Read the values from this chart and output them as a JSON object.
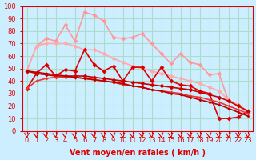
{
  "x": [
    0,
    1,
    2,
    3,
    4,
    5,
    6,
    7,
    8,
    9,
    10,
    11,
    12,
    13,
    14,
    15,
    16,
    17,
    18,
    19,
    20,
    21,
    22,
    23
  ],
  "series": [
    {
      "name": "light_pink_top",
      "color": "#ff9999",
      "linewidth": 1.2,
      "markersize": 3,
      "y": [
        48,
        68,
        74,
        72,
        85,
        72,
        95,
        93,
        88,
        75,
        74,
        75,
        78,
        70,
        62,
        54,
        62,
        55,
        53,
        45,
        46,
        24,
        20,
        15
      ]
    },
    {
      "name": "light_pink_mid",
      "color": "#ffaaaa",
      "linewidth": 1.2,
      "markersize": 3,
      "y": [
        48,
        68,
        70,
        70,
        70,
        68,
        65,
        65,
        62,
        58,
        55,
        52,
        50,
        48,
        46,
        44,
        42,
        40,
        38,
        35,
        32,
        25,
        21,
        16
      ]
    },
    {
      "name": "red_jagged",
      "color": "#dd0000",
      "linewidth": 1.2,
      "markersize": 3,
      "y": [
        34,
        46,
        53,
        44,
        49,
        48,
        65,
        53,
        48,
        52,
        40,
        51,
        51,
        40,
        51,
        40,
        37,
        36,
        32,
        30,
        10,
        10,
        11,
        16
      ]
    },
    {
      "name": "red_smooth1",
      "color": "#cc0000",
      "linewidth": 1.2,
      "markersize": 3,
      "y": [
        48,
        46,
        45,
        44,
        44,
        44,
        44,
        43,
        42,
        41,
        40,
        39,
        38,
        37,
        36,
        35,
        34,
        33,
        31,
        29,
        27,
        24,
        20,
        16
      ]
    },
    {
      "name": "red_smooth2",
      "color": "#ee3333",
      "linewidth": 1.2,
      "markersize": 2,
      "y": [
        34,
        40,
        42,
        43,
        43,
        43,
        42,
        41,
        40,
        39,
        37,
        36,
        35,
        33,
        32,
        31,
        30,
        28,
        27,
        25,
        23,
        20,
        17,
        14
      ]
    },
    {
      "name": "red_diagonal",
      "color": "#bb0000",
      "linewidth": 1.2,
      "markersize": 2,
      "y": [
        48,
        47,
        46,
        45,
        44,
        43,
        42,
        41,
        40,
        39,
        38,
        36,
        35,
        33,
        32,
        30,
        29,
        27,
        25,
        23,
        21,
        18,
        15,
        12
      ]
    }
  ],
  "xlim": [
    -0.5,
    23.5
  ],
  "ylim": [
    0,
    100
  ],
  "yticks": [
    0,
    10,
    20,
    30,
    40,
    50,
    60,
    70,
    80,
    90,
    100
  ],
  "xticks": [
    0,
    1,
    2,
    3,
    4,
    5,
    6,
    7,
    8,
    9,
    10,
    11,
    12,
    13,
    14,
    15,
    16,
    17,
    18,
    19,
    20,
    21,
    22,
    23
  ],
  "xlabel": "Vent moyen/en rafales ( km/h )",
  "bg_color": "#cceeff",
  "grid_color": "#aaddcc",
  "tick_color": "#dd0000",
  "label_color": "#dd0000",
  "title": ""
}
